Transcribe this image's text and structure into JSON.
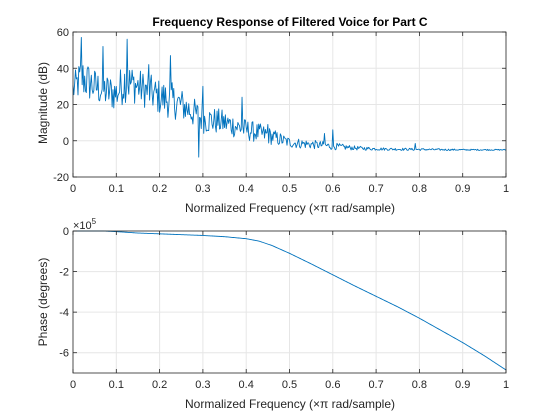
{
  "chart_data": [
    {
      "type": "line",
      "title": "Frequency Response of Filtered Voice for Part C",
      "xlabel": "Normalized Frequency  (×π rad/sample)",
      "ylabel": "Magnitude (dB)",
      "xlim": [
        0,
        1
      ],
      "ylim": [
        -20,
        60
      ],
      "xticks": [
        0,
        0.1,
        0.2,
        0.3,
        0.4,
        0.5,
        0.6,
        0.7,
        0.8,
        0.9,
        1
      ],
      "xtick_labels": [
        "0",
        "0.1",
        "0.2",
        "0.3",
        "0.4",
        "0.5",
        "0.6",
        "0.7",
        "0.8",
        "0.9",
        "1"
      ],
      "yticks": [
        -20,
        0,
        20,
        40,
        60
      ],
      "ytick_labels": [
        "-20",
        "0",
        "20",
        "40",
        "60"
      ],
      "grid": true,
      "color": "#0072BD",
      "series": [
        {
          "description": "noisy magnitude response envelope",
          "x": [
            0,
            0.02,
            0.05,
            0.08,
            0.1,
            0.12,
            0.15,
            0.2,
            0.23,
            0.25,
            0.3,
            0.35,
            0.4,
            0.45,
            0.5,
            0.55,
            0.6,
            0.65,
            0.7,
            0.8,
            0.9,
            1.0
          ],
          "y": [
            28,
            35,
            30,
            27,
            26,
            33,
            30,
            24,
            22,
            20,
            12,
            10,
            6,
            3,
            -1,
            -2,
            -3,
            -4,
            -4.5,
            -4.8,
            -5,
            -5
          ],
          "noise_amplitude": [
            8,
            12,
            10,
            10,
            10,
            12,
            10,
            10,
            10,
            9,
            8,
            7,
            6,
            5,
            3,
            2.5,
            2,
            1.2,
            0.8,
            0.6,
            0.4,
            0.3
          ],
          "spikes": [
            {
              "x": 0.02,
              "y": 57
            },
            {
              "x": 0.125,
              "y": 56
            },
            {
              "x": 0.225,
              "y": 47
            },
            {
              "x": 0.07,
              "y": 52
            },
            {
              "x": 0.175,
              "y": 42
            },
            {
              "x": 0.3,
              "y": 30
            },
            {
              "x": 0.29,
              "y": -9
            },
            {
              "x": 0.39,
              "y": 24
            },
            {
              "x": 0.45,
              "y": 9
            },
            {
              "x": 0.58,
              "y": 4
            },
            {
              "x": 0.6,
              "y": 6
            },
            {
              "x": 0.79,
              "y": -1.5
            }
          ]
        }
      ]
    },
    {
      "type": "line",
      "title": "",
      "xlabel": "Normalized Frequency  (×π rad/sample)",
      "ylabel": "Phase (degrees)",
      "exponent": "×10",
      "exponent_power": "5",
      "xlim": [
        0,
        1
      ],
      "ylim": [
        -7,
        0
      ],
      "xticks": [
        0,
        0.1,
        0.2,
        0.3,
        0.4,
        0.5,
        0.6,
        0.7,
        0.8,
        0.9,
        1
      ],
      "xtick_labels": [
        "0",
        "0.1",
        "0.2",
        "0.3",
        "0.4",
        "0.5",
        "0.6",
        "0.7",
        "0.8",
        "0.9",
        "1"
      ],
      "yticks": [
        -6,
        -4,
        -2,
        0
      ],
      "ytick_labels": [
        "-6",
        "-4",
        "-2",
        "0"
      ],
      "grid": true,
      "color": "#0072BD",
      "series": [
        {
          "x": [
            0,
            0.05,
            0.1,
            0.15,
            0.2,
            0.25,
            0.3,
            0.35,
            0.4,
            0.43,
            0.46,
            0.5,
            0.55,
            0.6,
            0.65,
            0.7,
            0.75,
            0.8,
            0.85,
            0.9,
            0.95,
            1.0
          ],
          "y": [
            0,
            0.02,
            -0.03,
            -0.1,
            -0.14,
            -0.18,
            -0.22,
            -0.28,
            -0.38,
            -0.5,
            -0.72,
            -1.1,
            -1.62,
            -2.16,
            -2.7,
            -3.22,
            -3.74,
            -4.3,
            -4.9,
            -5.5,
            -6.15,
            -6.85
          ]
        }
      ]
    }
  ]
}
